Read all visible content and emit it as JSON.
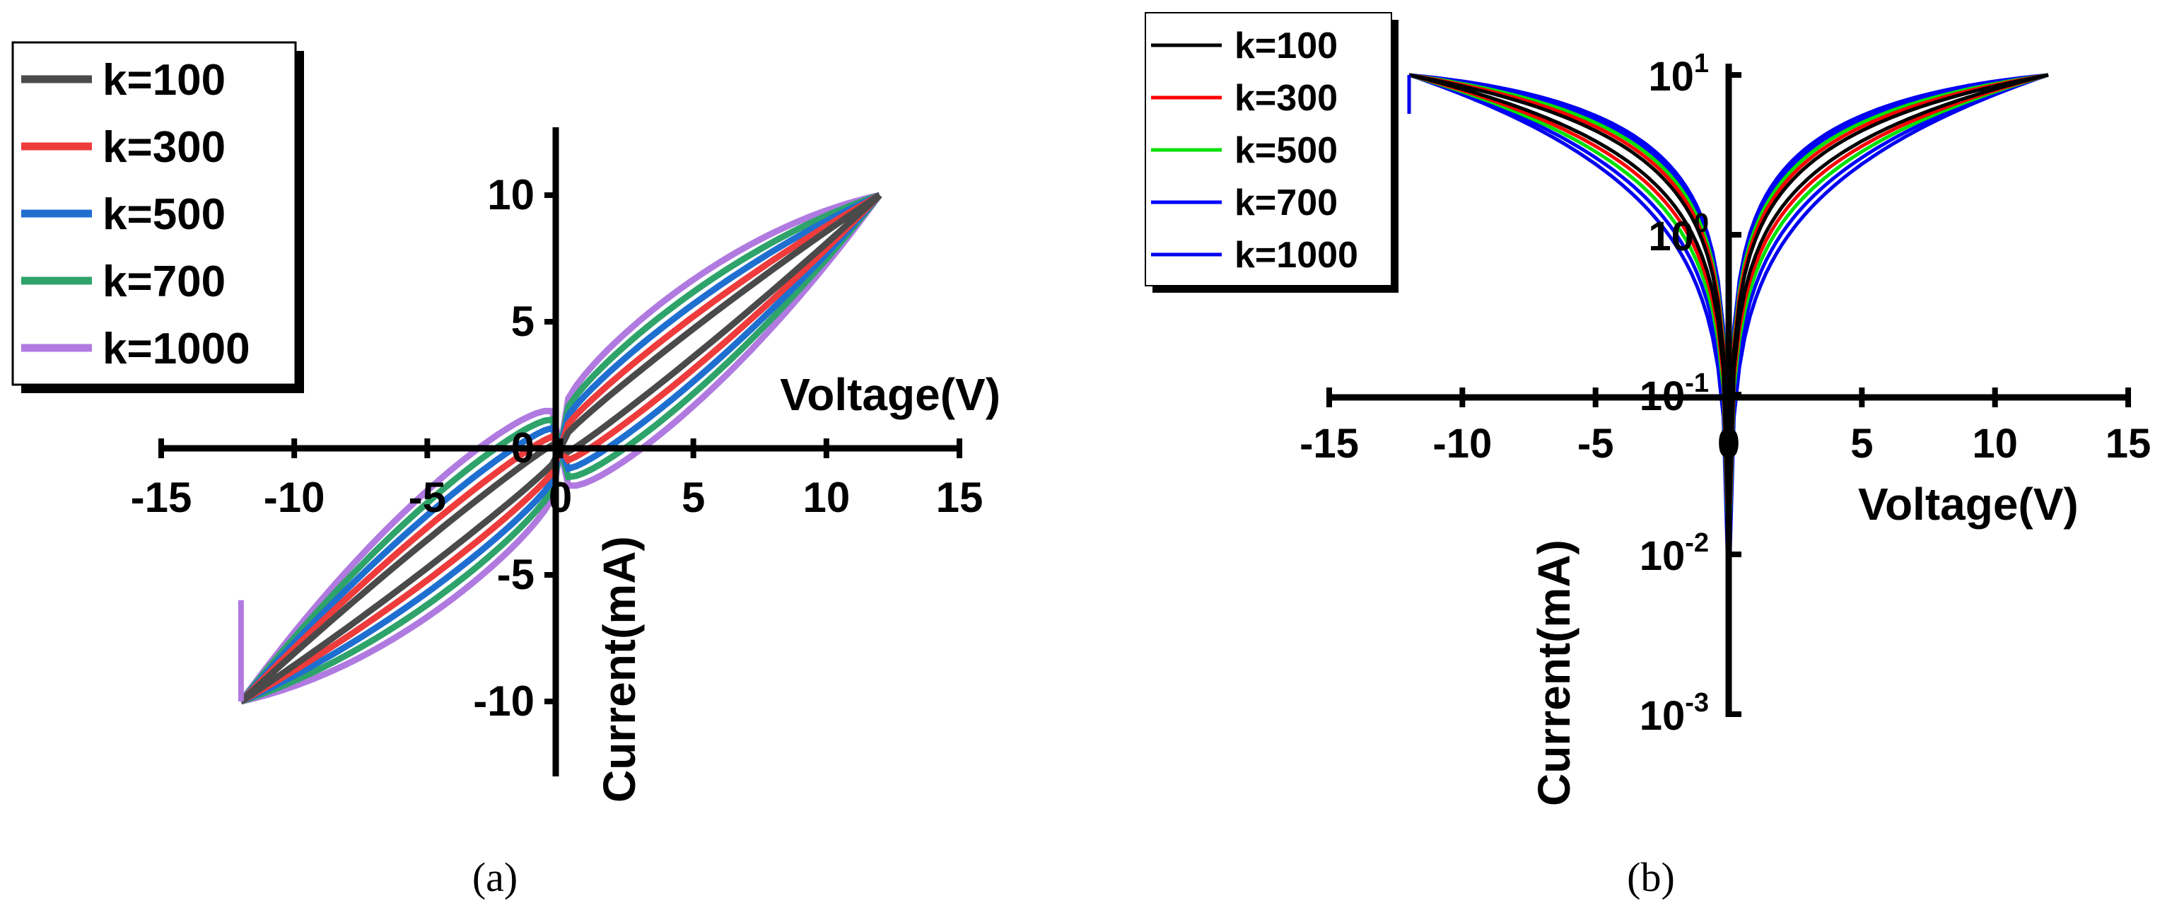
{
  "chart_data": [
    {
      "id": "a",
      "type": "line",
      "title": "",
      "caption": "(a)",
      "xlabel": "Voltage(V)",
      "ylabel": "Current(mA)",
      "xlim": [
        -15,
        15
      ],
      "ylim": [
        -12.5,
        12.5
      ],
      "x_ticks": [
        "-15",
        "-10",
        "-5",
        "0",
        "5",
        "10",
        "15"
      ],
      "y_ticks": [
        "10",
        "5",
        "0",
        "-5",
        "-10"
      ],
      "y_tick_values": [
        10,
        5,
        0,
        -5,
        -10
      ],
      "legend_position": "top-left",
      "description_peak": {
        "x_max": 12,
        "y_max": 10
      },
      "series": [
        {
          "name": "k=100",
          "color": "#4a4a4a",
          "curvature": 0.08
        },
        {
          "name": "k=300",
          "color": "#ee3b3b",
          "curvature": 0.15
        },
        {
          "name": "k=500",
          "color": "#1f6fd1",
          "curvature": 0.22
        },
        {
          "name": "k=700",
          "color": "#2ea36a",
          "curvature": 0.29
        },
        {
          "name": "k=1000",
          "color": "#b07ae0",
          "curvature": 0.36
        }
      ]
    },
    {
      "id": "b",
      "type": "line",
      "title": "",
      "caption": "(b)",
      "xlabel": "Voltage(V)",
      "ylabel": "Current(mA)",
      "xlim": [
        -15,
        15
      ],
      "ylim_log": [
        0.001,
        10
      ],
      "x_ticks": [
        "-15",
        "-10",
        "-5",
        "0",
        "5",
        "10",
        "15"
      ],
      "y_ticks": [
        {
          "base": "10",
          "exp": "1",
          "value": 10
        },
        {
          "base": "10",
          "exp": "0",
          "value": 1
        },
        {
          "base": "10",
          "exp": "-1",
          "value": 0.1
        },
        {
          "base": "10",
          "exp": "-2",
          "value": 0.01
        },
        {
          "base": "10",
          "exp": "-3",
          "value": 0.001
        }
      ],
      "legend_position": "top-left",
      "series": [
        {
          "name": "k=100",
          "color": "#000000",
          "curvature": 0.08
        },
        {
          "name": "k=300",
          "color": "#ff0000",
          "curvature": 0.15
        },
        {
          "name": "k=500",
          "color": "#00e000",
          "curvature": 0.22
        },
        {
          "name": "k=700",
          "color": "#0000ff",
          "curvature": 0.29
        },
        {
          "name": "k=1000",
          "color": "#0000ee",
          "curvature": 0.36
        }
      ]
    }
  ]
}
